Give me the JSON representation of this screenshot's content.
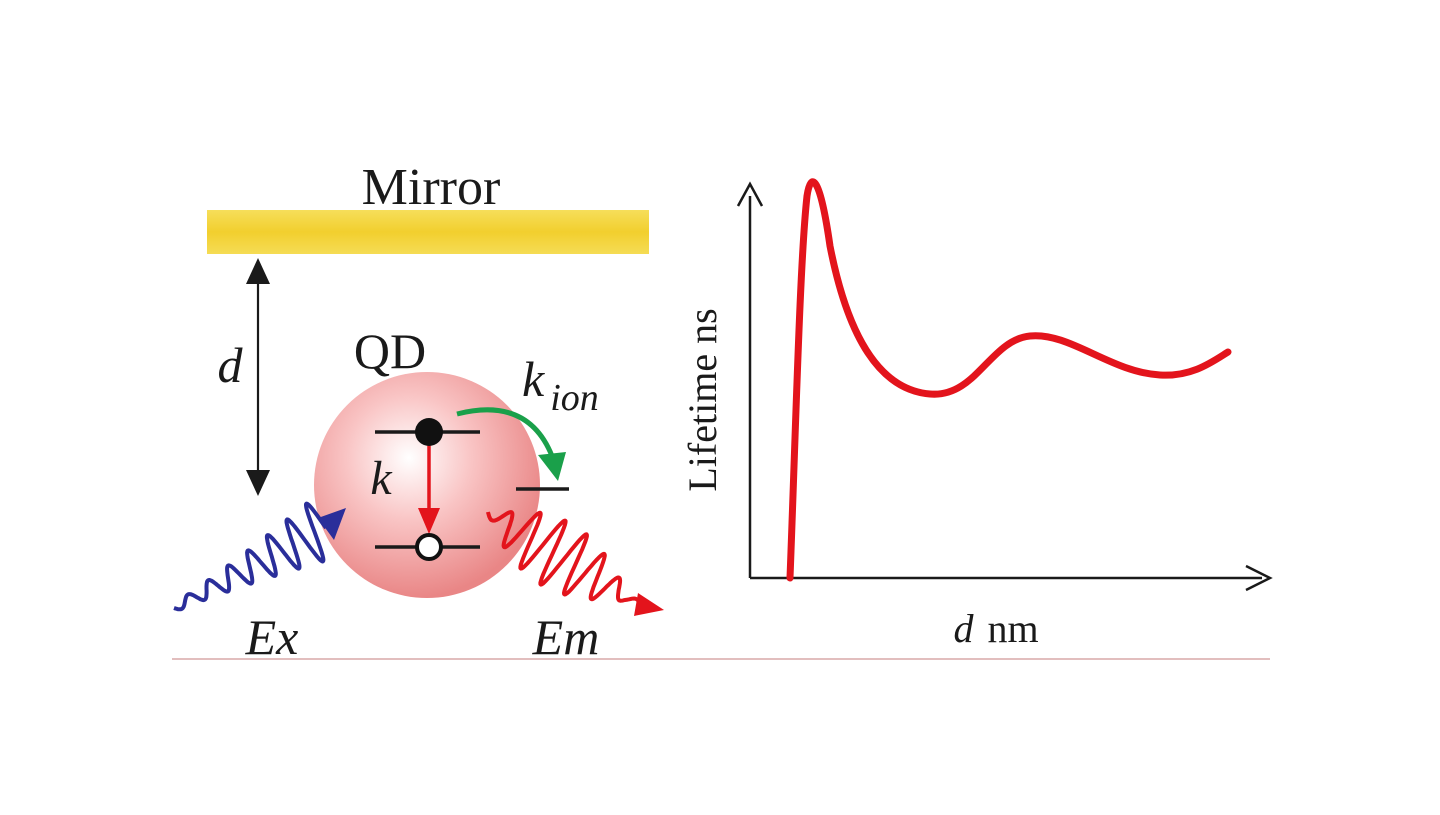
{
  "labels": {
    "mirror": "Mirror",
    "distance": "d",
    "quantum_dot": "QD",
    "rate_main": "k",
    "rate_ion_base": "k",
    "rate_ion_sub": "ion",
    "excitation": "Ex",
    "emission": "Em"
  },
  "plot": {
    "ylabel": "Lifetime ns",
    "xlabel_var": "d",
    "xlabel_unit": "nm"
  },
  "colors": {
    "mirror": "#f2d23a",
    "curve": "#e3141c",
    "excitation_wave": "#2a2e9a",
    "emission_wave": "#e3141c",
    "ionization_arrow": "#1aa04a",
    "qd_sphere": "#f08f8f"
  }
}
